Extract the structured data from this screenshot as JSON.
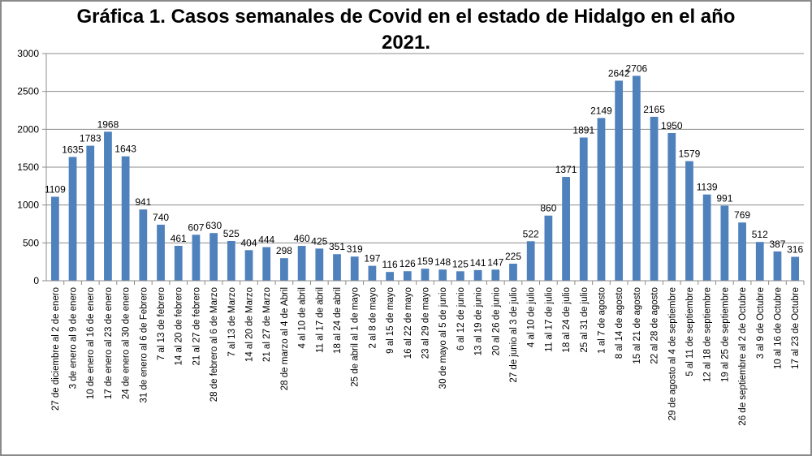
{
  "chart_data": {
    "type": "bar",
    "title_line1": "Gráfica 1. Casos semanales de Covid en el estado de Hidalgo en el año",
    "title_line2": "2021.",
    "ylim": [
      0,
      3000
    ],
    "yticks": [
      "0",
      "500",
      "1000",
      "1500",
      "2000",
      "2500",
      "3000"
    ],
    "bar_color": "#4f81bd",
    "grid": "horizontal",
    "categories": [
      "27 de diciembre al 2 de enero",
      "3 de enero al 9 de enero",
      "10 de enero al 16 de enero",
      "17 de enero al 23 de enero",
      "24 de enero al 30 de enero",
      "31 de enero al 6 de Febrero",
      "7 al 13 de febrero",
      "14 al 20 de febrero",
      "21 al 27 de febrero",
      "28 de febrero al 6 de Marzo",
      "7 al 13 de Marzo",
      "14 al 20 de Marzo",
      "21 al 27 de Marzo",
      "28 de marzo al 4 de Abril",
      "4 al 10 de abril",
      "11 al 17 de abril",
      "18 al 24 de abril",
      "25 de abril al 1 de mayo",
      "2 al 8 de mayo",
      "9 al 15 de mayo",
      "16 al 22 de mayo",
      "23 al 29 de mayo",
      "30 de mayo al 5 de junio",
      "6 al 12 de junio",
      "13 al 19 de junio",
      "20 al 26 de junio",
      "27 de junio al 3 de julio",
      "4 al 10 de julio",
      "11 al 17 de julio",
      "18 al 24 de julio",
      "25 al 31 de julio",
      "1 al 7 de agosto",
      "8 al 14 de agosto",
      "15 al 21 de agosto",
      "22 al 28 de agosto",
      "29 de agosto al 4 de septiembre",
      "5 al 11 de septiembre",
      "12 al 18 de septiembre",
      "19 al 25 de septiembre",
      "26 de septiembre al 2 de Octubre",
      "3 al 9 de Octubre",
      "10 al 16 de Octubre",
      "17 al 23 de Octubre"
    ],
    "values": [
      1109,
      1635,
      1783,
      1968,
      1643,
      941,
      740,
      461,
      607,
      630,
      525,
      404,
      444,
      298,
      460,
      425,
      351,
      319,
      197,
      116,
      126,
      159,
      148,
      125,
      141,
      147,
      225,
      522,
      860,
      1371,
      1891,
      2149,
      2642,
      2706,
      2165,
      1950,
      1579,
      1139,
      991,
      769,
      512,
      387,
      316
    ]
  }
}
